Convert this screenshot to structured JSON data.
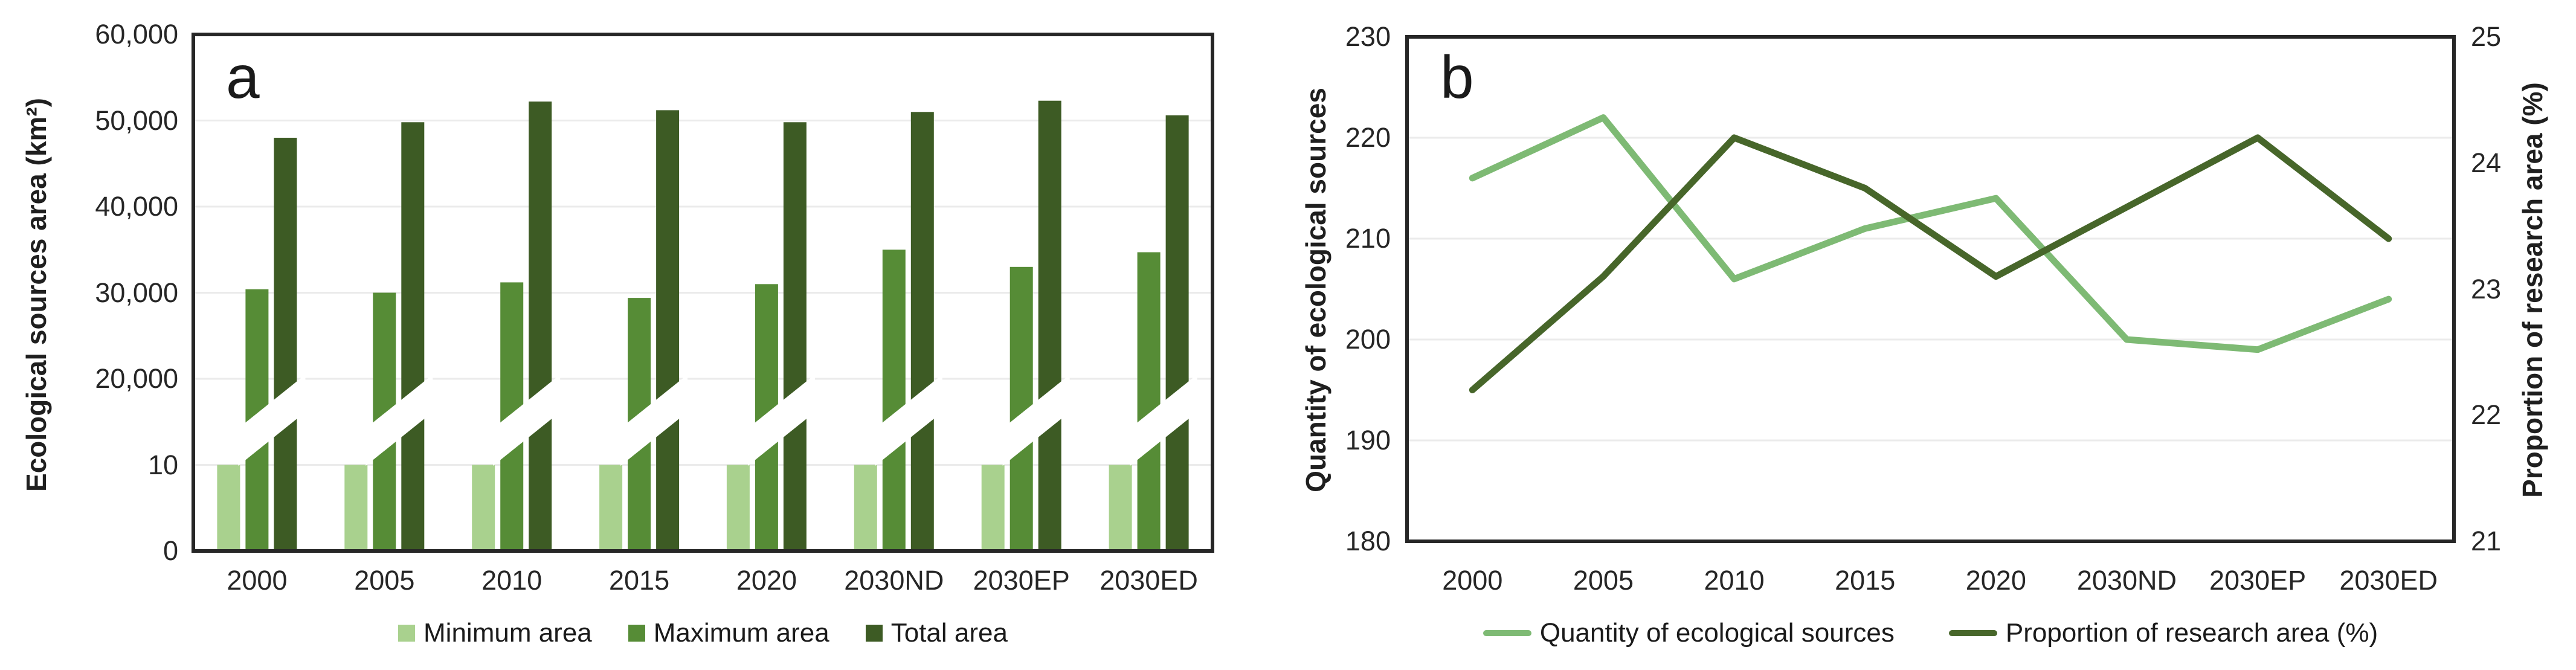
{
  "panels": {
    "a": {
      "letter": "a"
    },
    "b": {
      "letter": "b"
    }
  },
  "chart_data": [
    {
      "type": "bar",
      "panel": "a",
      "title": "",
      "ylabel": "Ecological sources area (km²)",
      "categories": [
        "2000",
        "2005",
        "2010",
        "2015",
        "2020",
        "2030ND",
        "2030EP",
        "2030ED"
      ],
      "series": [
        {
          "name": "Minimum area",
          "color": "#a9d18e",
          "values": [
            10,
            10,
            10,
            10,
            10,
            10,
            10,
            10
          ]
        },
        {
          "name": "Maximum area",
          "color": "#568c36",
          "values": [
            30400,
            30000,
            31200,
            29400,
            31000,
            35000,
            33000,
            34700
          ]
        },
        {
          "name": "Total area",
          "color": "#3d5b24",
          "values": [
            48000,
            49800,
            52200,
            51200,
            49800,
            51000,
            52300,
            50600
          ]
        }
      ],
      "y_tick_labels": [
        "60,000",
        "50,000",
        "40,000",
        "30,000",
        "20,000",
        "10",
        "0"
      ],
      "axis_break": {
        "between": [
          10,
          20000
        ],
        "style": "diagonal-white-band-through-bars"
      },
      "grid": "horizontal",
      "legend_position": "bottom"
    },
    {
      "type": "line",
      "panel": "b",
      "title": "",
      "ylabel_left": "Quantity of ecological sources",
      "ylabel_right": "Proportion of research area (%)",
      "categories": [
        "2000",
        "2005",
        "2010",
        "2015",
        "2020",
        "2030ND",
        "2030EP",
        "2030ED"
      ],
      "ylim_left": [
        180,
        230
      ],
      "ylim_right": [
        21,
        25
      ],
      "y_tick_labels_left": [
        "230",
        "220",
        "210",
        "200",
        "190",
        "180"
      ],
      "y_tick_labels_right": [
        "25",
        "24",
        "23",
        "22",
        "21"
      ],
      "series": [
        {
          "name": "Quantity of  ecological sources",
          "axis": "left",
          "color": "#7eba74",
          "values": [
            216,
            222,
            206,
            211,
            214,
            200,
            199,
            204
          ]
        },
        {
          "name": "Proportion of research area (%)",
          "axis": "right",
          "color": "#47662a",
          "values": [
            22.2,
            23.1,
            24.2,
            23.8,
            23.1,
            23.65,
            24.2,
            23.4
          ]
        }
      ],
      "grid": "horizontal",
      "legend_position": "bottom"
    }
  ]
}
